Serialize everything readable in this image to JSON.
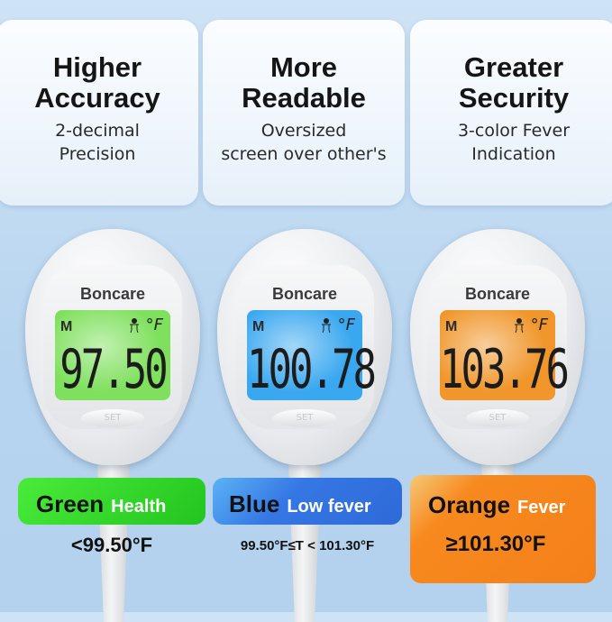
{
  "features": [
    {
      "title": "Higher Accuracy",
      "line1": "2-decimal",
      "line2": "Precision"
    },
    {
      "title": "More Readable",
      "line1": "Oversized",
      "line2": "screen over other's"
    },
    {
      "title": "Greater Security",
      "line1": "3-color Fever",
      "line2": "Indication"
    }
  ],
  "thermometers": [
    {
      "brand": "Boncare",
      "mode": "M",
      "unit": "°F",
      "reading": "97.50",
      "button": "SET",
      "screen_color": "#7ee05c"
    },
    {
      "brand": "Boncare",
      "mode": "M",
      "unit": "°F",
      "reading": "100.78",
      "button": "SET",
      "screen_color": "#3aa8f0"
    },
    {
      "brand": "Boncare",
      "mode": "M",
      "unit": "°F",
      "reading": "103.76",
      "button": "SET",
      "screen_color": "#f0962a"
    }
  ],
  "legend": [
    {
      "color_name": "Green",
      "status": "Health",
      "range": "<99.50°F",
      "color": "#2fd62c"
    },
    {
      "color_name": "Blue",
      "status": "Low fever",
      "range": "99.50°F≤T < 101.30°F",
      "color": "#3a7de8"
    },
    {
      "color_name": "Orange",
      "status": "Fever",
      "range": "≥101.30°F",
      "color": "#f7871c"
    }
  ]
}
